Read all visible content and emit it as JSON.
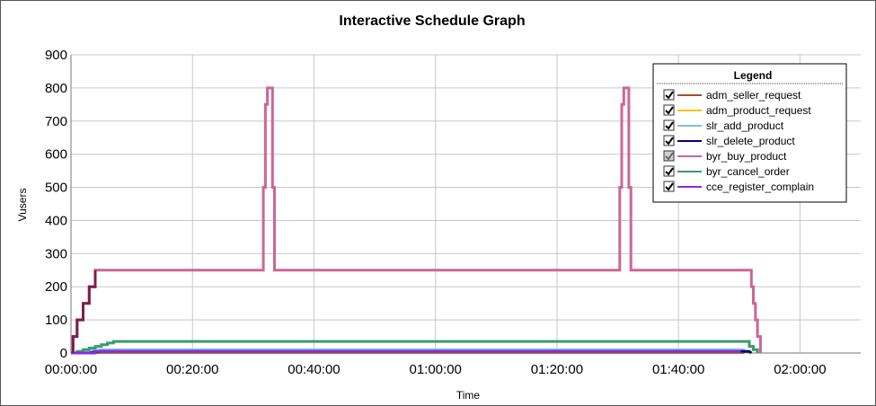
{
  "chart_data": {
    "type": "line",
    "title": "Interactive Schedule Graph",
    "xlabel": "Time",
    "ylabel": "Vusers",
    "xlim": [
      0,
      7800
    ],
    "ylim": [
      0,
      900
    ],
    "y_ticks": [
      0,
      100,
      200,
      300,
      400,
      500,
      600,
      700,
      800,
      900
    ],
    "x_ticks": [
      {
        "t": 0,
        "label": "00:00:00"
      },
      {
        "t": 1200,
        "label": "00:20:00"
      },
      {
        "t": 2400,
        "label": "00:40:00"
      },
      {
        "t": 3600,
        "label": "01:00:00"
      },
      {
        "t": 4800,
        "label": "01:20:00"
      },
      {
        "t": 6000,
        "label": "01:40:00"
      },
      {
        "t": 7200,
        "label": "02:00:00"
      }
    ],
    "grid": true,
    "legend": {
      "title": "Legend",
      "position": "top-right"
    },
    "series": [
      {
        "name": "adm_seller_request",
        "color": "#a0522d",
        "checked": true,
        "width": 2,
        "points": [
          [
            0,
            0
          ],
          [
            300,
            0
          ],
          [
            6650,
            0
          ]
        ]
      },
      {
        "name": "adm_product_request",
        "color": "#f5c518",
        "checked": true,
        "width": 2,
        "points": [
          [
            0,
            0
          ],
          [
            300,
            2
          ],
          [
            6650,
            2
          ],
          [
            6700,
            0
          ]
        ]
      },
      {
        "name": "slr_add_product",
        "color": "#87bfd8",
        "checked": true,
        "width": 2,
        "points": [
          [
            0,
            0
          ],
          [
            60,
            0
          ],
          [
            120,
            3
          ],
          [
            180,
            6
          ],
          [
            240,
            9
          ],
          [
            300,
            11
          ],
          [
            6650,
            11
          ],
          [
            6660,
            0
          ]
        ]
      },
      {
        "name": "slr_delete_product",
        "color": "#00008b",
        "checked": true,
        "width": 3,
        "points": [
          [
            0,
            0
          ],
          [
            180,
            0
          ],
          [
            240,
            3
          ],
          [
            300,
            5
          ],
          [
            6700,
            5
          ],
          [
            6720,
            0
          ]
        ]
      },
      {
        "name": "byr_buy_product",
        "color": "#cc6699",
        "checked": true,
        "width": 3,
        "points": [
          [
            0,
            0
          ],
          [
            20,
            0
          ],
          [
            20,
            50
          ],
          [
            60,
            50
          ],
          [
            60,
            100
          ],
          [
            120,
            100
          ],
          [
            120,
            150
          ],
          [
            180,
            150
          ],
          [
            180,
            200
          ],
          [
            240,
            200
          ],
          [
            240,
            250
          ],
          [
            1900,
            250
          ],
          [
            1900,
            500
          ],
          [
            1920,
            500
          ],
          [
            1920,
            750
          ],
          [
            1940,
            750
          ],
          [
            1940,
            800
          ],
          [
            1990,
            800
          ],
          [
            1990,
            500
          ],
          [
            2010,
            500
          ],
          [
            2010,
            250
          ],
          [
            5420,
            250
          ],
          [
            5420,
            500
          ],
          [
            5440,
            500
          ],
          [
            5440,
            750
          ],
          [
            5460,
            750
          ],
          [
            5460,
            800
          ],
          [
            5510,
            800
          ],
          [
            5510,
            500
          ],
          [
            5530,
            500
          ],
          [
            5530,
            250
          ],
          [
            6720,
            250
          ],
          [
            6720,
            200
          ],
          [
            6740,
            200
          ],
          [
            6740,
            150
          ],
          [
            6760,
            150
          ],
          [
            6760,
            100
          ],
          [
            6780,
            100
          ],
          [
            6780,
            50
          ],
          [
            6810,
            50
          ],
          [
            6810,
            0
          ]
        ]
      },
      {
        "name": "byr_cancel_order",
        "color": "#3c9b6b",
        "checked": true,
        "width": 3,
        "points": [
          [
            0,
            0
          ],
          [
            60,
            0
          ],
          [
            60,
            5
          ],
          [
            120,
            5
          ],
          [
            120,
            10
          ],
          [
            180,
            10
          ],
          [
            180,
            15
          ],
          [
            240,
            15
          ],
          [
            240,
            20
          ],
          [
            300,
            20
          ],
          [
            300,
            25
          ],
          [
            360,
            25
          ],
          [
            360,
            30
          ],
          [
            420,
            30
          ],
          [
            420,
            35
          ],
          [
            6700,
            35
          ],
          [
            6700,
            20
          ],
          [
            6740,
            20
          ],
          [
            6740,
            10
          ],
          [
            6780,
            10
          ],
          [
            6780,
            0
          ]
        ]
      },
      {
        "name": "cce_register_complain",
        "color": "#8a2be2",
        "checked": true,
        "width": 3,
        "points": [
          [
            0,
            0
          ],
          [
            240,
            0
          ],
          [
            240,
            5
          ],
          [
            6600,
            5
          ],
          [
            6600,
            0
          ]
        ]
      }
    ],
    "ramp_overlay": {
      "color": "#7b1e4a",
      "points": [
        [
          20,
          0
        ],
        [
          20,
          50
        ],
        [
          60,
          50
        ],
        [
          60,
          100
        ],
        [
          120,
          100
        ],
        [
          120,
          150
        ],
        [
          180,
          150
        ],
        [
          180,
          200
        ],
        [
          240,
          200
        ],
        [
          240,
          250
        ]
      ]
    }
  }
}
